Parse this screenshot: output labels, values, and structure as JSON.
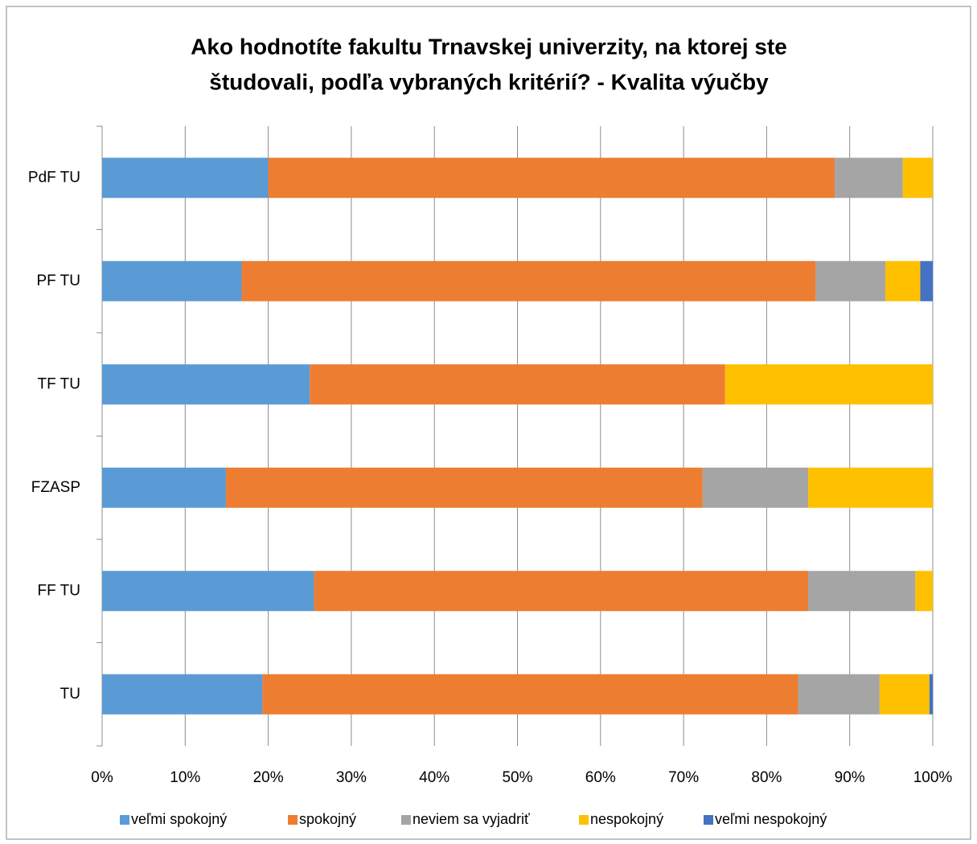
{
  "chart_data": {
    "type": "stacked-barh",
    "title": [
      "Ako hodnotíte fakultu Trnavskej univerzity, na ktorej ste",
      "študovali, podľa vybraných kritérií?  - Kvalita výučby"
    ],
    "categories": [
      "PdF TU",
      "PF TU",
      "TF TU",
      "FZASP",
      "FF TU",
      "TU"
    ],
    "series": [
      {
        "name": "veľmi spokojný",
        "color": "#5b9bd5",
        "values": [
          20,
          16.8,
          25,
          14.9,
          25.5,
          19.3
        ]
      },
      {
        "name": "spokojný",
        "color": "#ed7d31",
        "values": [
          68.2,
          69.1,
          50,
          57.4,
          59.5,
          64.5
        ]
      },
      {
        "name": "neviem sa vyjadriť",
        "color": "#a5a5a5",
        "values": [
          8.2,
          8.4,
          0,
          12.7,
          12.9,
          9.8
        ]
      },
      {
        "name": "nespokojný",
        "color": "#ffc000",
        "values": [
          3.6,
          4.2,
          25,
          15,
          2.1,
          6
        ]
      },
      {
        "name": "veľmi nespokojný",
        "color": "#4472c4",
        "values": [
          0,
          1.5,
          0,
          0,
          0,
          0.4
        ]
      }
    ],
    "xlim": [
      0,
      100
    ],
    "xticks": [
      {
        "value": 0,
        "label": "0%"
      },
      {
        "value": 10,
        "label": "10%"
      },
      {
        "value": 20,
        "label": "20%"
      },
      {
        "value": 30,
        "label": "30%"
      },
      {
        "value": 40,
        "label": "40%"
      },
      {
        "value": 50,
        "label": "50%"
      },
      {
        "value": 60,
        "label": "60%"
      },
      {
        "value": 70,
        "label": "70%"
      },
      {
        "value": 80,
        "label": "80%"
      },
      {
        "value": 90,
        "label": "90%"
      },
      {
        "value": 100,
        "label": "100%"
      }
    ],
    "grid": true,
    "legend": "bottom"
  }
}
